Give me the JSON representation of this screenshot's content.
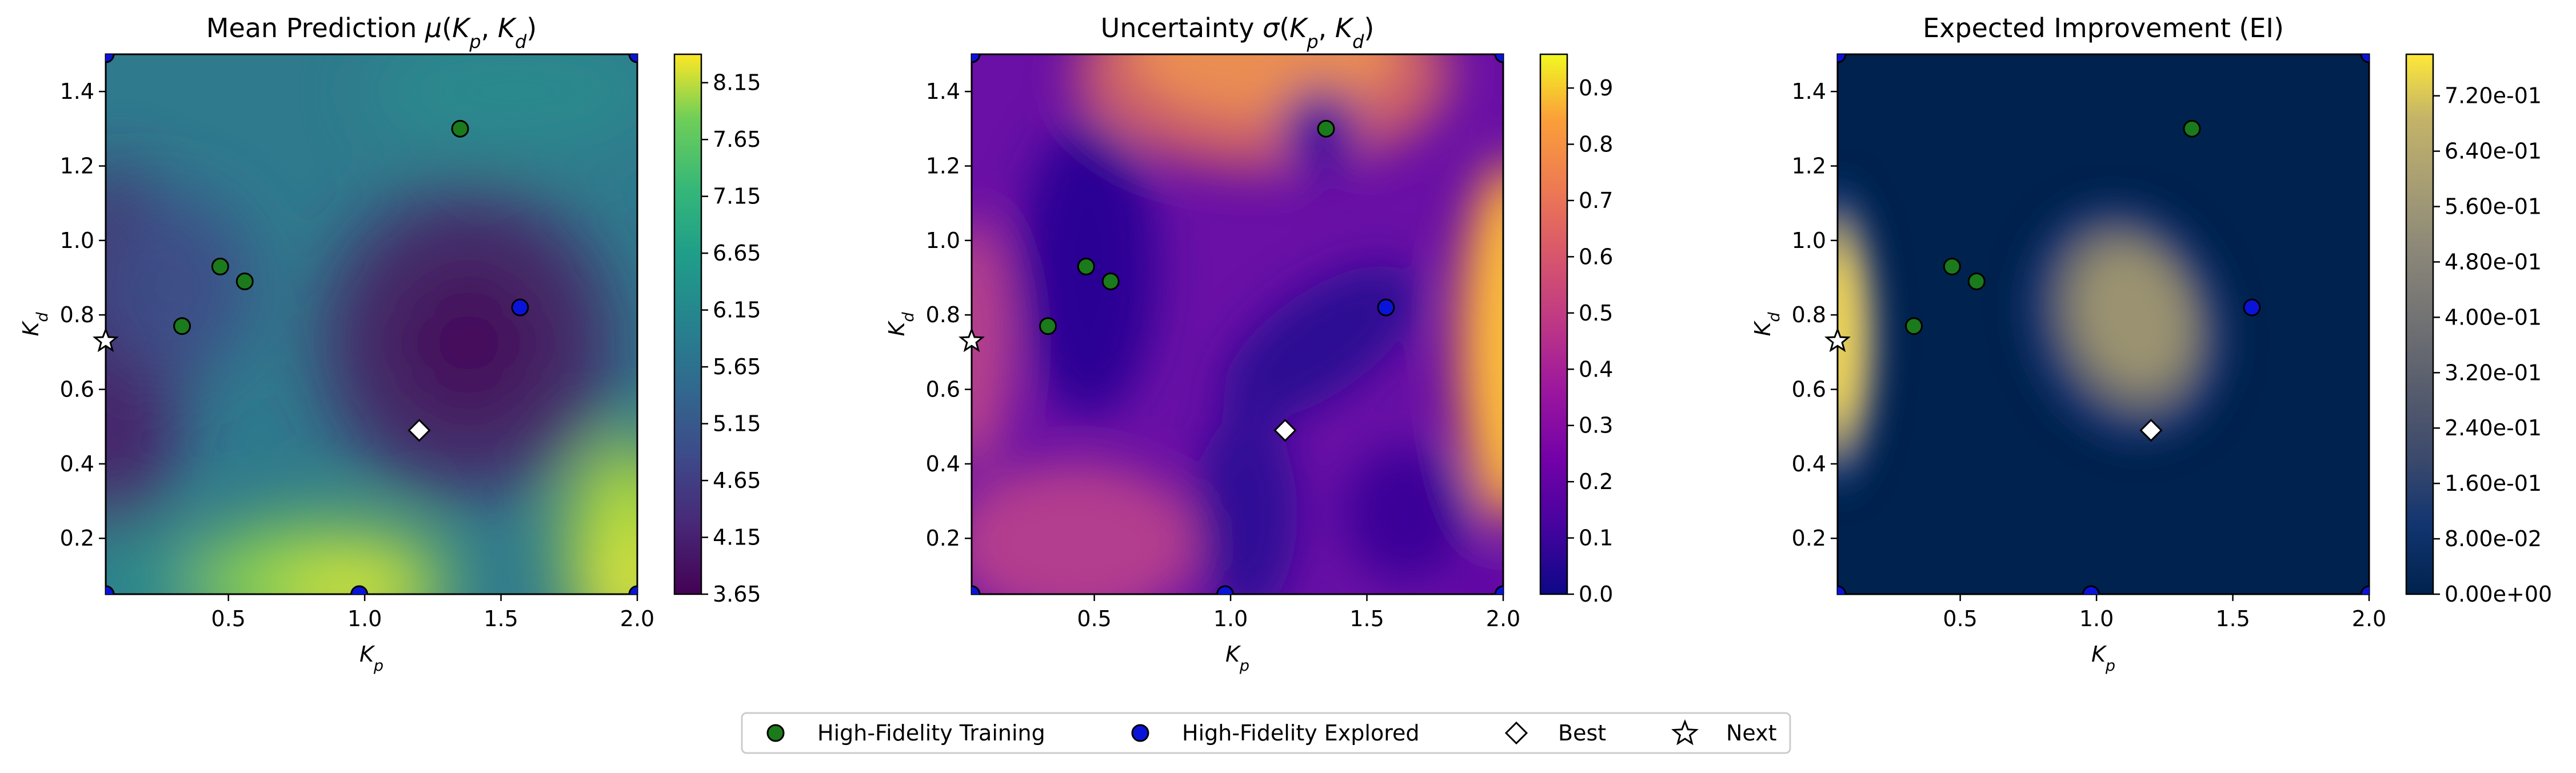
{
  "chart_data": [
    {
      "type": "heatmap",
      "title": "Mean Prediction μ(K_p, K_d)",
      "title_prefix": "Mean Prediction",
      "title_symbol": "μ",
      "xlabel": "K_p",
      "ylabel": "K_d",
      "xlim": [
        0.05,
        2.0
      ],
      "ylim": [
        0.05,
        1.5
      ],
      "xticks": [
        "0.5",
        "1.0",
        "1.5",
        "2.0"
      ],
      "yticks": [
        "0.2",
        "0.4",
        "0.6",
        "0.8",
        "1.0",
        "1.2",
        "1.4"
      ],
      "colormap": "viridis",
      "colorbar_range": [
        3.65,
        8.4
      ],
      "colorbar_ticks": [
        "3.65",
        "4.15",
        "4.65",
        "5.15",
        "5.65",
        "6.15",
        "6.65",
        "7.15",
        "7.65",
        "8.15"
      ]
    },
    {
      "type": "heatmap",
      "title": "Uncertainty σ(K_p, K_d)",
      "title_prefix": "Uncertainty",
      "title_symbol": "σ",
      "xlabel": "K_p",
      "ylabel": "K_d",
      "xlim": [
        0.05,
        2.0
      ],
      "ylim": [
        0.05,
        1.5
      ],
      "xticks": [
        "0.5",
        "1.0",
        "1.5",
        "2.0"
      ],
      "yticks": [
        "0.2",
        "0.4",
        "0.6",
        "0.8",
        "1.0",
        "1.2",
        "1.4"
      ],
      "colormap": "plasma",
      "colorbar_range": [
        0.0,
        0.96
      ],
      "colorbar_ticks": [
        "0.0",
        "0.1",
        "0.2",
        "0.3",
        "0.4",
        "0.5",
        "0.6",
        "0.7",
        "0.8",
        "0.9"
      ]
    },
    {
      "type": "heatmap",
      "title": "Expected Improvement (EI)",
      "xlabel": "K_p",
      "ylabel": "K_d",
      "xlim": [
        0.05,
        2.0
      ],
      "ylim": [
        0.05,
        1.5
      ],
      "xticks": [
        "0.5",
        "1.0",
        "1.5",
        "2.0"
      ],
      "yticks": [
        "0.2",
        "0.4",
        "0.6",
        "0.8",
        "1.0",
        "1.2",
        "1.4"
      ],
      "colormap": "cividis",
      "colorbar_range": [
        0.0,
        0.78
      ],
      "colorbar_ticks": [
        "0.00e+00",
        "8.00e-02",
        "1.60e-01",
        "2.40e-01",
        "3.20e-01",
        "4.00e-01",
        "4.80e-01",
        "5.60e-01",
        "6.40e-01",
        "7.20e-01"
      ]
    }
  ],
  "points": {
    "high_fidelity_training": [
      [
        0.33,
        0.77
      ],
      [
        0.47,
        0.93
      ],
      [
        0.56,
        0.89
      ],
      [
        1.35,
        1.3
      ]
    ],
    "high_fidelity_explored": [
      [
        1.57,
        0.82
      ],
      [
        0.98,
        0.05
      ],
      [
        0.05,
        0.05
      ],
      [
        2.0,
        0.05
      ],
      [
        0.05,
        1.5
      ],
      [
        2.0,
        1.5
      ]
    ],
    "best": [
      1.2,
      0.49
    ],
    "next": [
      0.05,
      0.73
    ]
  },
  "legend": {
    "items": [
      {
        "label": "High-Fidelity Training",
        "marker": "circle",
        "color": "#1b7a1b"
      },
      {
        "label": "High-Fidelity Explored",
        "marker": "circle",
        "color": "#0a14d8"
      },
      {
        "label": "Best",
        "marker": "diamond",
        "color": "#ffffff"
      },
      {
        "label": "Next",
        "marker": "star",
        "color": "#ffffff"
      }
    ]
  },
  "colors": {
    "training": "#1b7a1b",
    "explored": "#0a14d8",
    "best": "#ffffff",
    "next": "#ffffff"
  }
}
